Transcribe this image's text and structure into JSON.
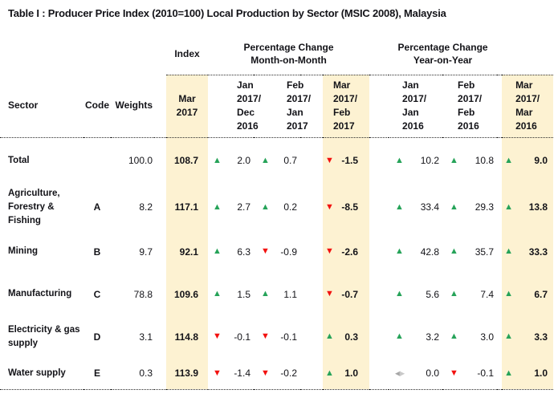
{
  "title": "Table I : Producer Price Index (2010=100) Local Production by Sector (MSIC 2008), Malaysia",
  "header": {
    "groups": {
      "index": "Index",
      "mom": "Percentage Change\nMonth-on-Month",
      "yoy": "Percentage Change\nYear-on-Year"
    },
    "columns": {
      "sector": "Sector",
      "code": "Code",
      "weights": "Weights",
      "index_period": "Mar\n2017",
      "mom_periods": [
        "Jan\n2017/\nDec\n2016",
        "Feb\n2017/\nJan\n2017",
        "Mar\n2017/\nFeb\n2017"
      ],
      "yoy_periods": [
        "Jan\n2017/\nJan\n2016",
        "Feb\n2017/\nFeb\n2016",
        "Mar\n2017/\nMar\n2016"
      ]
    }
  },
  "rows": [
    {
      "sector": "Total",
      "code": "",
      "weights": "100.0",
      "index": "108.7",
      "changes": [
        {
          "dir": "up",
          "val": "2.0"
        },
        {
          "dir": "up",
          "val": "0.7"
        },
        {
          "dir": "down",
          "val": "-1.5"
        },
        {
          "dir": "up",
          "val": "10.2"
        },
        {
          "dir": "up",
          "val": "10.8"
        },
        {
          "dir": "up",
          "val": "9.0"
        }
      ]
    },
    {
      "sector": "Agriculture,\nForestry &\nFishing",
      "code": "A",
      "weights": "8.2",
      "index": "117.1",
      "changes": [
        {
          "dir": "up",
          "val": "2.7"
        },
        {
          "dir": "up",
          "val": "0.2"
        },
        {
          "dir": "down",
          "val": "-8.5"
        },
        {
          "dir": "up",
          "val": "33.4"
        },
        {
          "dir": "up",
          "val": "29.3"
        },
        {
          "dir": "up",
          "val": "13.8"
        }
      ]
    },
    {
      "sector": "Mining",
      "code": "B",
      "weights": "9.7",
      "index": "92.1",
      "changes": [
        {
          "dir": "up",
          "val": "6.3"
        },
        {
          "dir": "down",
          "val": "-0.9"
        },
        {
          "dir": "down",
          "val": "-2.6"
        },
        {
          "dir": "up",
          "val": "42.8"
        },
        {
          "dir": "up",
          "val": "35.7"
        },
        {
          "dir": "up",
          "val": "33.3"
        }
      ]
    },
    {
      "sector": "Manufacturing",
      "code": "C",
      "weights": "78.8",
      "index": "109.6",
      "changes": [
        {
          "dir": "up",
          "val": "1.5"
        },
        {
          "dir": "up",
          "val": "1.1"
        },
        {
          "dir": "down",
          "val": "-0.7"
        },
        {
          "dir": "up",
          "val": "5.6"
        },
        {
          "dir": "up",
          "val": "7.4"
        },
        {
          "dir": "up",
          "val": "6.7"
        }
      ]
    },
    {
      "sector": "Electricity & gas\nsupply",
      "code": "D",
      "weights": "3.1",
      "index": "114.8",
      "changes": [
        {
          "dir": "down",
          "val": "-0.1"
        },
        {
          "dir": "down",
          "val": "-0.1"
        },
        {
          "dir": "up",
          "val": "0.3"
        },
        {
          "dir": "up",
          "val": "3.2"
        },
        {
          "dir": "up",
          "val": "3.0"
        },
        {
          "dir": "up",
          "val": "3.3"
        }
      ]
    },
    {
      "sector": "Water supply",
      "code": "E",
      "weights": "0.3",
      "index": "113.9",
      "changes": [
        {
          "dir": "down",
          "val": "-1.4"
        },
        {
          "dir": "down",
          "val": "-0.2"
        },
        {
          "dir": "up",
          "val": "1.0"
        },
        {
          "dir": "flat",
          "val": "0.0"
        },
        {
          "dir": "down",
          "val": "-0.1"
        },
        {
          "dir": "up",
          "val": "1.0"
        }
      ]
    }
  ],
  "icons": {
    "up": "▲",
    "down": "▼",
    "flat_left": "◀",
    "flat_right": "▶"
  },
  "colors": {
    "highlight": "#fdf2d2",
    "up": "#26a359",
    "down": "#f2110f",
    "flat_left": "#a6a6a6",
    "flat_right": "#c9c9c9"
  }
}
